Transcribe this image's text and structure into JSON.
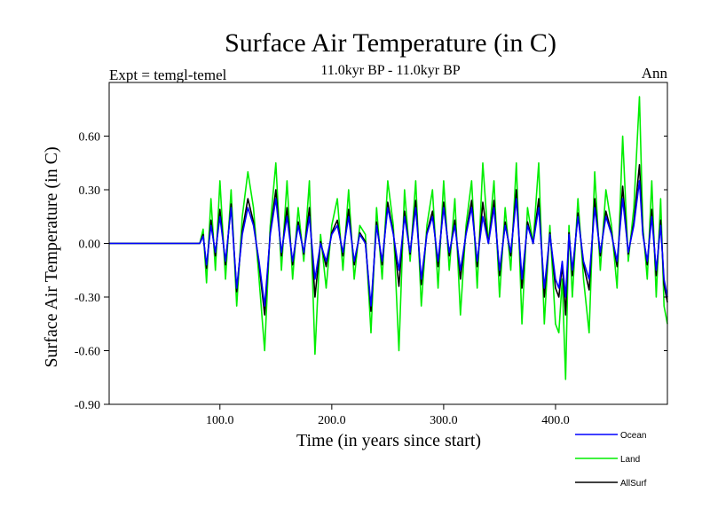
{
  "chart_data": {
    "type": "line",
    "title": "Surface Air Temperature (in C)",
    "subtitle": "11.0kyr BP - 11.0kyr BP",
    "left_note": "Expt = temgl-temel",
    "right_note": "Ann",
    "xlabel": "Time (in years since start)",
    "ylabel": "Surface Air Temperature (in C)",
    "xlim": [
      1,
      500
    ],
    "ylim": [
      -0.9,
      0.9
    ],
    "xticks": [
      100,
      200,
      300,
      400
    ],
    "xtick_labels": [
      "100.0",
      "200.0",
      "300.0",
      "400.0"
    ],
    "yticks": [
      -0.9,
      -0.6,
      -0.3,
      0.0,
      0.3,
      0.6
    ],
    "ytick_labels": [
      "-0.90",
      "-0.60",
      "-0.30",
      "0.00",
      "0.30",
      "0.60"
    ],
    "legend_position": "bottom-right, below plot",
    "series": [
      {
        "name": "Ocean",
        "color": "#0000ff",
        "x": [
          1,
          82,
          85,
          88,
          92,
          96,
          100,
          105,
          110,
          115,
          120,
          125,
          130,
          135,
          140,
          145,
          150,
          155,
          160,
          165,
          170,
          175,
          180,
          185,
          190,
          195,
          200,
          205,
          210,
          215,
          220,
          225,
          230,
          235,
          240,
          245,
          250,
          255,
          260,
          265,
          270,
          275,
          280,
          285,
          290,
          295,
          300,
          305,
          310,
          315,
          320,
          325,
          330,
          335,
          340,
          345,
          350,
          355,
          360,
          365,
          370,
          375,
          380,
          385,
          390,
          395,
          400,
          403,
          406,
          409,
          412,
          415,
          420,
          425,
          430,
          435,
          440,
          445,
          450,
          455,
          460,
          465,
          470,
          475,
          478,
          482,
          486,
          490,
          494,
          497,
          500
        ],
        "y": [
          0.0,
          0.0,
          0.04,
          -0.12,
          0.1,
          -0.05,
          0.15,
          -0.1,
          0.2,
          -0.25,
          0.05,
          0.2,
          0.1,
          -0.1,
          -0.35,
          0.05,
          0.25,
          -0.05,
          0.15,
          -0.1,
          0.1,
          -0.05,
          0.15,
          -0.2,
          0.0,
          -0.1,
          0.05,
          0.1,
          -0.05,
          0.15,
          -0.1,
          0.05,
          0.0,
          -0.35,
          0.1,
          -0.1,
          0.2,
          0.05,
          -0.15,
          0.15,
          -0.05,
          0.2,
          -0.2,
          0.05,
          0.15,
          -0.1,
          0.2,
          -0.05,
          0.1,
          -0.15,
          0.05,
          0.2,
          -0.1,
          0.15,
          0.0,
          0.2,
          -0.15,
          0.1,
          -0.05,
          0.25,
          -0.2,
          0.1,
          0.0,
          0.2,
          -0.25,
          0.05,
          -0.2,
          -0.25,
          -0.1,
          -0.3,
          0.05,
          -0.15,
          0.15,
          -0.1,
          -0.2,
          0.2,
          -0.05,
          0.15,
          0.05,
          -0.1,
          0.25,
          -0.05,
          0.1,
          0.35,
          0.05,
          -0.1,
          0.15,
          -0.15,
          0.1,
          -0.2,
          -0.3
        ]
      },
      {
        "name": "Land",
        "color": "#00ee00",
        "x": [
          1,
          82,
          85,
          88,
          92,
          96,
          100,
          105,
          110,
          115,
          120,
          125,
          130,
          135,
          140,
          145,
          150,
          155,
          160,
          165,
          170,
          175,
          180,
          185,
          190,
          195,
          200,
          205,
          210,
          215,
          220,
          225,
          230,
          235,
          240,
          245,
          250,
          255,
          260,
          265,
          270,
          275,
          280,
          285,
          290,
          295,
          300,
          305,
          310,
          315,
          320,
          325,
          330,
          335,
          340,
          345,
          350,
          355,
          360,
          365,
          370,
          375,
          380,
          385,
          390,
          395,
          400,
          403,
          406,
          409,
          412,
          415,
          420,
          425,
          430,
          435,
          440,
          445,
          450,
          455,
          460,
          465,
          470,
          475,
          478,
          482,
          486,
          490,
          494,
          497,
          500
        ],
        "y": [
          0.0,
          0.0,
          0.08,
          -0.22,
          0.25,
          -0.15,
          0.35,
          -0.2,
          0.3,
          -0.35,
          0.15,
          0.4,
          0.2,
          -0.2,
          -0.6,
          0.1,
          0.45,
          -0.15,
          0.35,
          -0.2,
          0.2,
          -0.1,
          0.35,
          -0.62,
          0.05,
          -0.25,
          0.1,
          0.25,
          -0.15,
          0.3,
          -0.2,
          0.1,
          0.05,
          -0.5,
          0.2,
          -0.2,
          0.35,
          0.1,
          -0.6,
          0.3,
          -0.1,
          0.35,
          -0.35,
          0.1,
          0.3,
          -0.25,
          0.35,
          -0.15,
          0.25,
          -0.4,
          0.1,
          0.35,
          -0.25,
          0.45,
          0.0,
          0.35,
          -0.3,
          0.2,
          -0.15,
          0.45,
          -0.45,
          0.2,
          0.0,
          0.45,
          -0.45,
          0.1,
          -0.45,
          -0.5,
          -0.2,
          -0.76,
          0.1,
          -0.3,
          0.25,
          -0.2,
          -0.5,
          0.4,
          -0.15,
          0.3,
          0.1,
          -0.25,
          0.6,
          -0.1,
          0.2,
          0.82,
          0.1,
          -0.2,
          0.35,
          -0.3,
          0.25,
          -0.35,
          -0.45
        ]
      },
      {
        "name": "AllSurf",
        "color": "#000000",
        "x": [
          1,
          82,
          85,
          88,
          92,
          96,
          100,
          105,
          110,
          115,
          120,
          125,
          130,
          135,
          140,
          145,
          150,
          155,
          160,
          165,
          170,
          175,
          180,
          185,
          190,
          195,
          200,
          205,
          210,
          215,
          220,
          225,
          230,
          235,
          240,
          245,
          250,
          255,
          260,
          265,
          270,
          275,
          280,
          285,
          290,
          295,
          300,
          305,
          310,
          315,
          320,
          325,
          330,
          335,
          340,
          345,
          350,
          355,
          360,
          365,
          370,
          375,
          380,
          385,
          390,
          395,
          400,
          403,
          406,
          409,
          412,
          415,
          420,
          425,
          430,
          435,
          440,
          445,
          450,
          455,
          460,
          465,
          470,
          475,
          478,
          482,
          486,
          490,
          494,
          497,
          500
        ],
        "y": [
          0.0,
          0.0,
          0.05,
          -0.14,
          0.13,
          -0.07,
          0.19,
          -0.12,
          0.22,
          -0.27,
          0.07,
          0.25,
          0.12,
          -0.12,
          -0.4,
          0.06,
          0.3,
          -0.07,
          0.2,
          -0.12,
          0.12,
          -0.06,
          0.2,
          -0.3,
          0.01,
          -0.13,
          0.06,
          0.13,
          -0.07,
          0.19,
          -0.12,
          0.06,
          0.01,
          -0.38,
          0.12,
          -0.12,
          0.23,
          0.06,
          -0.24,
          0.18,
          -0.06,
          0.24,
          -0.23,
          0.06,
          0.18,
          -0.13,
          0.23,
          -0.07,
          0.13,
          -0.2,
          0.06,
          0.24,
          -0.13,
          0.23,
          0.0,
          0.24,
          -0.18,
          0.12,
          -0.07,
          0.3,
          -0.25,
          0.12,
          0.0,
          0.25,
          -0.3,
          0.06,
          -0.25,
          -0.3,
          -0.12,
          -0.4,
          0.06,
          -0.18,
          0.17,
          -0.12,
          -0.26,
          0.25,
          -0.07,
          0.18,
          0.06,
          -0.13,
          0.32,
          -0.06,
          0.12,
          0.44,
          0.06,
          -0.12,
          0.19,
          -0.18,
          0.13,
          -0.23,
          -0.33
        ]
      }
    ]
  }
}
